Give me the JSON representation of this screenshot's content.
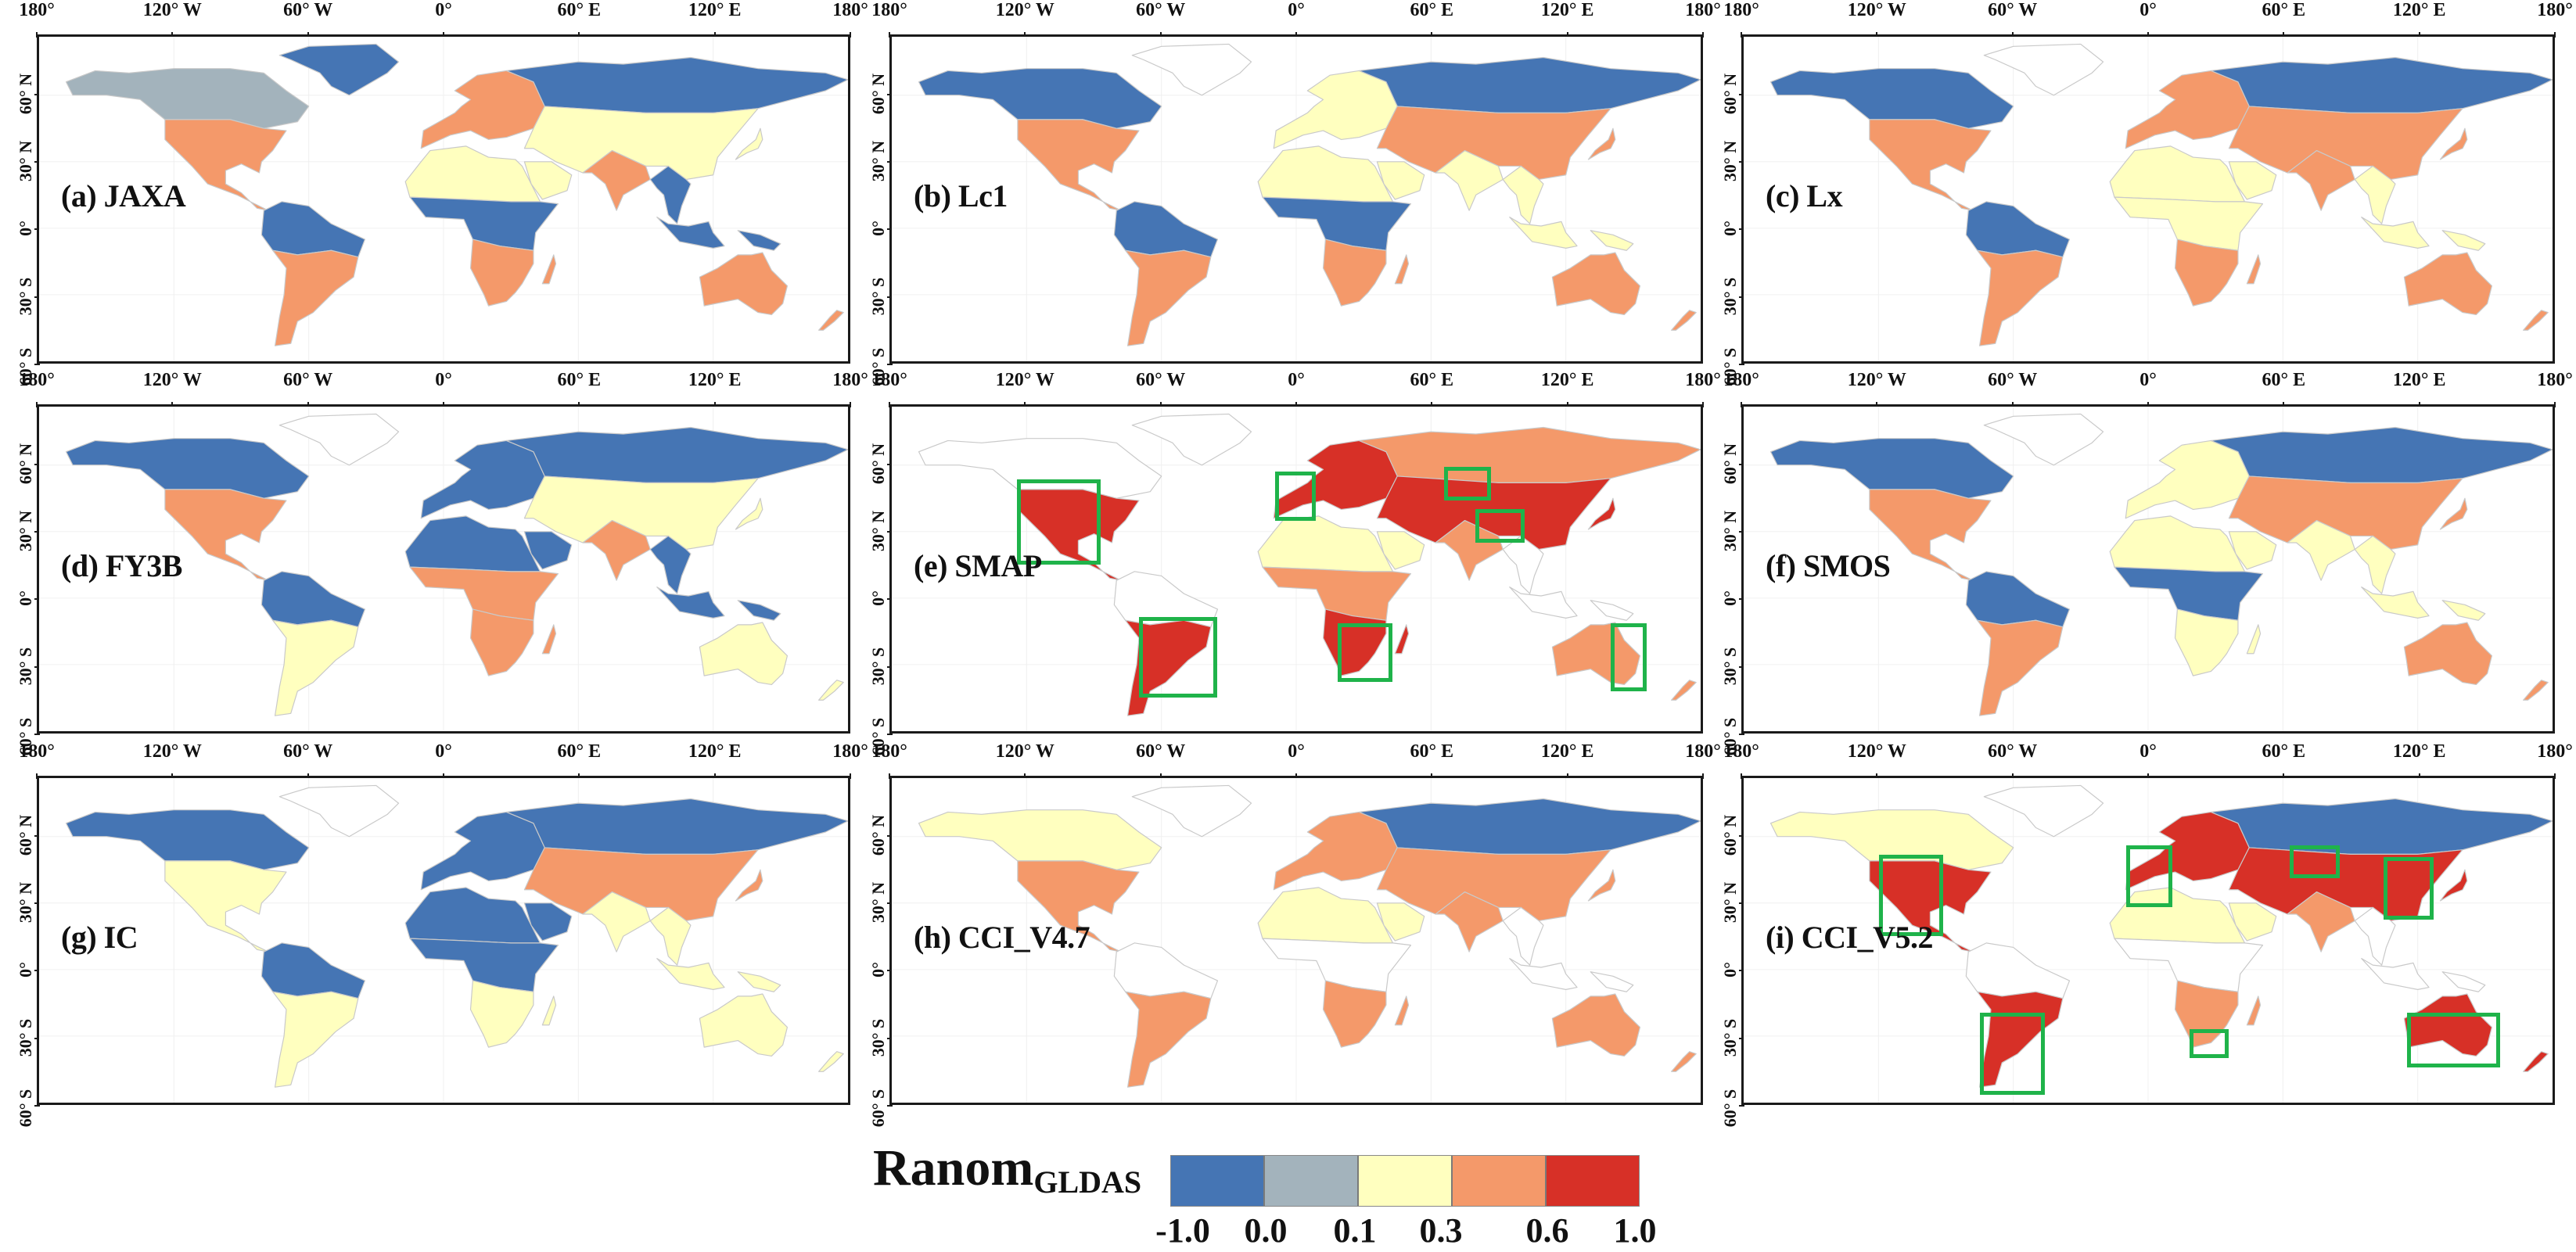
{
  "legend": {
    "title": "Ranom",
    "subscript": "GLDAS",
    "bins": [
      {
        "range": "-1.0 to 0.0",
        "color": "#4575b4"
      },
      {
        "range": "0.0 to 0.1",
        "color": "#a3b3bc"
      },
      {
        "range": "0.1 to 0.3",
        "color": "#ffffbf"
      },
      {
        "range": "0.3 to 0.6",
        "color": "#f4996a"
      },
      {
        "range": "0.6 to 1.0",
        "color": "#d73027"
      }
    ],
    "ticks": [
      "-1.0",
      "0.0",
      "0.1",
      "0.3",
      "0.6",
      "1.0"
    ]
  },
  "axes": {
    "lon_labels": [
      "180°",
      "120° W",
      "60° W",
      "0°",
      "60° E",
      "120° E",
      "180°"
    ],
    "lat_labels": [
      "60° N",
      "30° N",
      "0°",
      "30° S",
      "60° S"
    ]
  },
  "highlight_color": "#1fb34a",
  "panels": [
    {
      "id": "a",
      "label": "(a) JAXA",
      "colors": {
        "na_north": "#a3b3bc",
        "na_south": "#f4996a",
        "greenland": "#4575b4",
        "sa_north": "#4575b4",
        "sa_south": "#f4996a",
        "europe": "#f4996a",
        "russia": "#4575b4",
        "asia_mid": "#ffffbf",
        "india": "#f4996a",
        "sahara": "#ffffbf",
        "africa_c": "#4575b4",
        "africa_s": "#f4996a",
        "australia": "#f4996a",
        "seasia": "#4575b4"
      },
      "boxes": []
    },
    {
      "id": "b",
      "label": "(b) Lc1",
      "colors": {
        "na_north": "#4575b4",
        "na_south": "#f4996a",
        "greenland": "#ffffff",
        "sa_north": "#4575b4",
        "sa_south": "#f4996a",
        "europe": "#ffffbf",
        "russia": "#4575b4",
        "asia_mid": "#f4996a",
        "india": "#ffffbf",
        "sahara": "#ffffbf",
        "africa_c": "#4575b4",
        "africa_s": "#f4996a",
        "australia": "#f4996a",
        "seasia": "#ffffbf"
      },
      "boxes": []
    },
    {
      "id": "c",
      "label": "(c) Lx",
      "colors": {
        "na_north": "#4575b4",
        "na_south": "#f4996a",
        "greenland": "#ffffff",
        "sa_north": "#4575b4",
        "sa_south": "#f4996a",
        "europe": "#f4996a",
        "russia": "#4575b4",
        "asia_mid": "#f4996a",
        "india": "#f4996a",
        "sahara": "#ffffbf",
        "africa_c": "#ffffbf",
        "africa_s": "#f4996a",
        "australia": "#f4996a",
        "seasia": "#ffffbf"
      },
      "boxes": []
    },
    {
      "id": "d",
      "label": "(d) FY3B",
      "colors": {
        "na_north": "#4575b4",
        "na_south": "#f4996a",
        "greenland": "#ffffff",
        "sa_north": "#4575b4",
        "sa_south": "#ffffbf",
        "europe": "#4575b4",
        "russia": "#4575b4",
        "asia_mid": "#ffffbf",
        "india": "#f4996a",
        "sahara": "#4575b4",
        "africa_c": "#f4996a",
        "africa_s": "#f4996a",
        "australia": "#ffffbf",
        "seasia": "#4575b4"
      },
      "boxes": []
    },
    {
      "id": "e",
      "label": "(e) SMAP",
      "colors": {
        "na_north": "#ffffff",
        "na_south": "#d73027",
        "greenland": "#ffffff",
        "sa_north": "#ffffff",
        "sa_south": "#d73027",
        "europe": "#d73027",
        "russia": "#f4996a",
        "asia_mid": "#d73027",
        "india": "#f4996a",
        "sahara": "#ffffbf",
        "africa_c": "#f4996a",
        "africa_s": "#d73027",
        "australia": "#f4996a",
        "seasia": "#ffffff"
      },
      "boxes": [
        [
          0.154,
          0.221,
          0.257,
          0.48
        ],
        [
          0.471,
          0.198,
          0.521,
          0.348
        ],
        [
          0.679,
          0.182,
          0.737,
          0.284
        ],
        [
          0.717,
          0.31,
          0.778,
          0.413
        ],
        [
          0.304,
          0.639,
          0.4,
          0.883
        ],
        [
          0.548,
          0.657,
          0.615,
          0.837
        ],
        [
          0.884,
          0.657,
          0.928,
          0.864
        ]
      ]
    },
    {
      "id": "f",
      "label": "(f) SMOS",
      "colors": {
        "na_north": "#4575b4",
        "na_south": "#f4996a",
        "greenland": "#ffffff",
        "sa_north": "#4575b4",
        "sa_south": "#f4996a",
        "europe": "#ffffbf",
        "russia": "#4575b4",
        "asia_mid": "#f4996a",
        "india": "#ffffbf",
        "sahara": "#ffffbf",
        "africa_c": "#4575b4",
        "africa_s": "#ffffbf",
        "australia": "#f4996a",
        "seasia": "#ffffbf"
      },
      "boxes": []
    },
    {
      "id": "g",
      "label": "(g) IC",
      "colors": {
        "na_north": "#4575b4",
        "na_south": "#ffffbf",
        "greenland": "#ffffff",
        "sa_north": "#4575b4",
        "sa_south": "#ffffbf",
        "europe": "#4575b4",
        "russia": "#4575b4",
        "asia_mid": "#f4996a",
        "india": "#ffffbf",
        "sahara": "#4575b4",
        "africa_c": "#4575b4",
        "africa_s": "#ffffbf",
        "australia": "#ffffbf",
        "seasia": "#ffffbf"
      },
      "boxes": []
    },
    {
      "id": "h",
      "label": "(h) CCI_V4.7",
      "colors": {
        "na_north": "#ffffbf",
        "na_south": "#f4996a",
        "greenland": "#ffffff",
        "sa_north": "#ffffff",
        "sa_south": "#f4996a",
        "europe": "#f4996a",
        "russia": "#4575b4",
        "asia_mid": "#f4996a",
        "india": "#f4996a",
        "sahara": "#ffffbf",
        "africa_c": "#ffffff",
        "africa_s": "#f4996a",
        "australia": "#f4996a",
        "seasia": "#ffffff"
      },
      "boxes": []
    },
    {
      "id": "i",
      "label": "(i) CCI_V5.2",
      "colors": {
        "na_north": "#ffffbf",
        "na_south": "#d73027",
        "greenland": "#ffffff",
        "sa_north": "#ffffff",
        "sa_south": "#d73027",
        "europe": "#d73027",
        "russia": "#4575b4",
        "asia_mid": "#d73027",
        "india": "#f4996a",
        "sahara": "#ffffbf",
        "africa_c": "#ffffff",
        "africa_s": "#f4996a",
        "australia": "#d73027",
        "seasia": "#ffffff"
      },
      "boxes": [
        [
          0.166,
          0.233,
          0.245,
          0.479
        ],
        [
          0.47,
          0.205,
          0.527,
          0.391
        ],
        [
          0.671,
          0.205,
          0.733,
          0.304
        ],
        [
          0.787,
          0.239,
          0.848,
          0.429
        ],
        [
          0.29,
          0.713,
          0.37,
          0.961
        ],
        [
          0.548,
          0.763,
          0.596,
          0.851
        ],
        [
          0.815,
          0.713,
          0.93,
          0.879
        ]
      ]
    }
  ]
}
